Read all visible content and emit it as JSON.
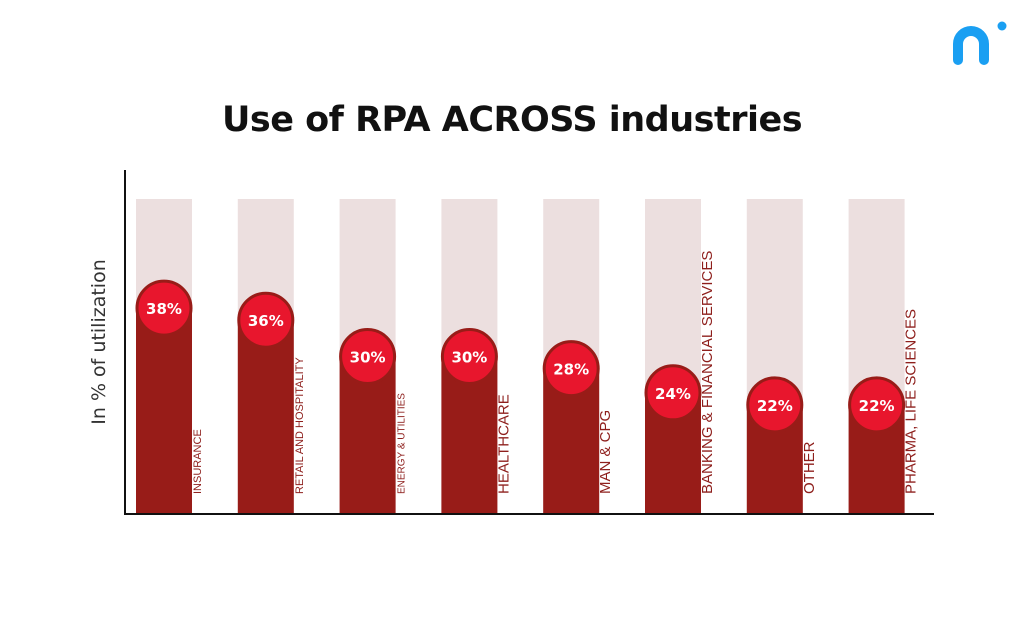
{
  "colors": {
    "bar": "#981c18",
    "track": "#ecdfdf",
    "bubble": "#e8162d",
    "bubble_ring": "#981c18",
    "label": "#8e1f1c",
    "axis": "#111111",
    "logo": "#1a9ff2"
  },
  "logo": {
    "icon": "stylized-a-logo-icon"
  },
  "chart_data": {
    "type": "bar",
    "title": "Use of RPA ACROSS industries",
    "ylabel": "In % of utilization",
    "xlabel": "",
    "ylim": [
      0,
      50
    ],
    "grid": false,
    "legend": "none",
    "categories": [
      "INSURANCE",
      "RETAIL AND HOSPITALITY",
      "ENERGY & UTILITIES",
      "HEALTHCARE",
      "MAN & CPG",
      "BANKING & FINANCIAL SERVICES",
      "OTHER",
      "PHARMA, LIFE SCIENCES"
    ],
    "values": [
      38,
      36,
      30,
      30,
      28,
      24,
      22,
      22
    ],
    "value_labels": [
      "38%",
      "36%",
      "30%",
      "30%",
      "28%",
      "24%",
      "22%",
      "22%"
    ]
  }
}
